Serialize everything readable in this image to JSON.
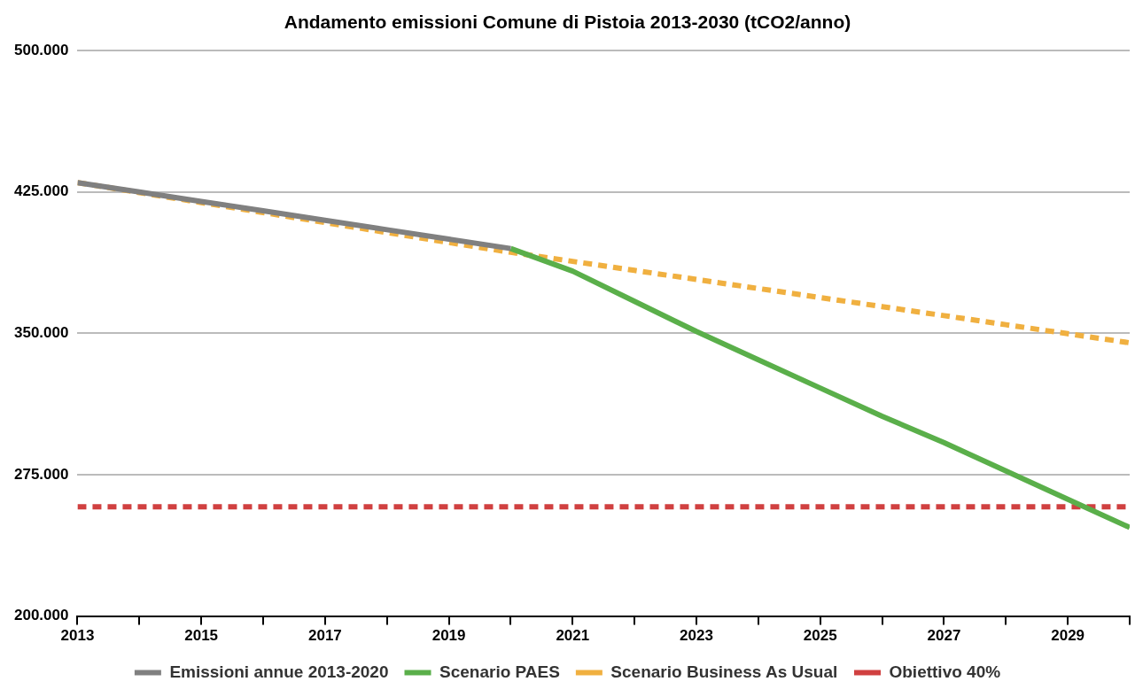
{
  "chart_data": {
    "type": "line",
    "title": "Andamento emissioni Comune di Pistoia 2013-2030 (tCO2/anno)",
    "xlim": [
      2013,
      2030
    ],
    "xticks": [
      2013,
      {
        "value": 2014,
        "label": null
      },
      2015,
      {
        "value": 2016,
        "label": null
      },
      2017,
      {
        "value": 2018,
        "label": null
      },
      2019,
      {
        "value": 2020,
        "label": null
      },
      2021,
      {
        "value": 2022,
        "label": null
      },
      2023,
      {
        "value": 2024,
        "label": null
      },
      2025,
      {
        "value": 2026,
        "label": null
      },
      2027,
      {
        "value": 2028,
        "label": null
      },
      2029,
      {
        "value": 2030,
        "label": null
      }
    ],
    "ylim": [
      200000,
      500000
    ],
    "yticks": [
      {
        "value": 200000,
        "label": "200.000"
      },
      {
        "value": 275000,
        "label": "275.000"
      },
      {
        "value": 350000,
        "label": "350.000"
      },
      {
        "value": 425000,
        "label": "425.000"
      },
      {
        "value": 500000,
        "label": "500.000"
      }
    ],
    "grid": "y",
    "legend": "bottom",
    "marker": "none",
    "series": [
      {
        "name": "Emissioni annue 2013-2020",
        "color": "#808080",
        "line_style": "solid",
        "x": [
          2013,
          2014,
          2015,
          2016,
          2017,
          2018,
          2019,
          2020
        ],
        "values": [
          430000,
          425000,
          420000,
          415000,
          410000,
          405000,
          400000,
          395000
        ]
      },
      {
        "name": "Scenario PAES",
        "color": "#5aaf4a",
        "line_style": "solid",
        "x": [
          2020,
          2021,
          2022,
          2023,
          2024,
          2025,
          2026,
          2027,
          2028,
          2029,
          2030
        ],
        "values": [
          395000,
          383000,
          367000,
          351000,
          336000,
          321000,
          306000,
          292000,
          277000,
          262000,
          247000
        ]
      },
      {
        "name": "Scenario Business As Usual",
        "color": "#f0b040",
        "line_style": "dashed",
        "x": [
          2013,
          2014,
          2015,
          2016,
          2017,
          2018,
          2019,
          2020,
          2021,
          2022,
          2023,
          2024,
          2025,
          2026,
          2027,
          2028,
          2029,
          2030
        ],
        "values": [
          430000,
          424700,
          419400,
          414100,
          408800,
          403500,
          398200,
          393000,
          388200,
          383400,
          378600,
          373800,
          369000,
          364200,
          359400,
          354600,
          349800,
          345000
        ]
      },
      {
        "name": "Obiettivo 40%",
        "color": "#d04040",
        "line_style": "dashed",
        "x": [
          2013,
          2030
        ],
        "values": [
          258000,
          258000
        ]
      }
    ]
  }
}
